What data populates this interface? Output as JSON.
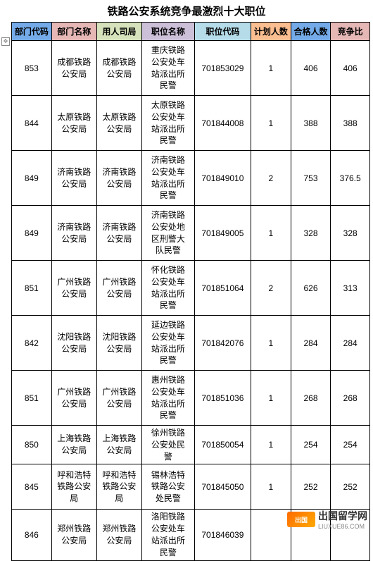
{
  "title": "铁路公安系统竞争最激烈十大职位",
  "columns": [
    "部门代码",
    "部门名称",
    "用人司局",
    "职位名称",
    "职位代码",
    "计划人数",
    "合格人数",
    "竞争比"
  ],
  "header_colors": [
    "#74aae7",
    "#e5b7b5",
    "#d6e2bb",
    "#ccc0d8",
    "#b6dce9",
    "#fabe90",
    "#74aae7",
    "#e5b7b5"
  ],
  "col_widths": [
    "50px",
    "60px",
    "60px",
    "70px",
    "75px",
    "52px",
    "52px",
    "52px"
  ],
  "row_heights": [
    "78px",
    "78px",
    "78px",
    "78px",
    "78px",
    "78px",
    "78px",
    "52px",
    "64px",
    "70px"
  ],
  "rows": [
    {
      "dept_code": "853",
      "dept_name": "成都铁路\n公安局",
      "bureau": "成都铁路\n公安局",
      "pos_name": "重庆铁路\n公安处车\n站派出所\n民警",
      "pos_code": "701853029",
      "plan": "1",
      "qualified": "406",
      "ratio": "406"
    },
    {
      "dept_code": "844",
      "dept_name": "太原铁路\n公安局",
      "bureau": "太原铁路\n公安局",
      "pos_name": "太原铁路\n公安处车\n站派出所\n民警",
      "pos_code": "701844008",
      "plan": "1",
      "qualified": "388",
      "ratio": "388"
    },
    {
      "dept_code": "849",
      "dept_name": "济南铁路\n公安局",
      "bureau": "济南铁路\n公安局",
      "pos_name": "济南铁路\n公安处车\n站派出所\n民警",
      "pos_code": "701849010",
      "plan": "2",
      "qualified": "753",
      "ratio": "376.5"
    },
    {
      "dept_code": "849",
      "dept_name": "济南铁路\n公安局",
      "bureau": "济南铁路\n公安局",
      "pos_name": "济南铁路\n公安处地\n区刑警大\n队民警",
      "pos_code": "701849005",
      "plan": "1",
      "qualified": "328",
      "ratio": "328"
    },
    {
      "dept_code": "851",
      "dept_name": "广州铁路\n公安局",
      "bureau": "广州铁路\n公安局",
      "pos_name": "怀化铁路\n公安处车\n站派出所\n民警",
      "pos_code": "701851064",
      "plan": "2",
      "qualified": "626",
      "ratio": "313"
    },
    {
      "dept_code": "842",
      "dept_name": "沈阳铁路\n公安局",
      "bureau": "沈阳铁路\n公安局",
      "pos_name": "延边铁路\n公安处车\n站派出所\n民警",
      "pos_code": "701842076",
      "plan": "1",
      "qualified": "284",
      "ratio": "284"
    },
    {
      "dept_code": "851",
      "dept_name": "广州铁路\n公安局",
      "bureau": "广州铁路\n公安局",
      "pos_name": "惠州铁路\n公安处车\n站派出所\n民警",
      "pos_code": "701851036",
      "plan": "1",
      "qualified": "268",
      "ratio": "268"
    },
    {
      "dept_code": "850",
      "dept_name": "上海铁路\n公安局",
      "bureau": "上海铁路\n公安局",
      "pos_name": "徐州铁路\n公安处民\n警",
      "pos_code": "701850054",
      "plan": "1",
      "qualified": "254",
      "ratio": "254"
    },
    {
      "dept_code": "845",
      "dept_name": "呼和浩特\n铁路公安\n局",
      "bureau": "呼和浩特\n铁路公安\n局",
      "pos_name": "锡林浩特\n铁路公安\n处民警",
      "pos_code": "701845050",
      "plan": "1",
      "qualified": "252",
      "ratio": "252"
    },
    {
      "dept_code": "846",
      "dept_name": "郑州铁路\n公安局",
      "bureau": "郑州铁路\n公安局",
      "pos_name": "洛阳铁路\n公安处车\n站派出所\n民警",
      "pos_code": "701846039",
      "plan": "",
      "qualified": "",
      "ratio": ""
    }
  ],
  "watermark": {
    "icon_text": "出国",
    "main_text": "出国留学网",
    "sub_text": "LIUXUE86.COM"
  }
}
